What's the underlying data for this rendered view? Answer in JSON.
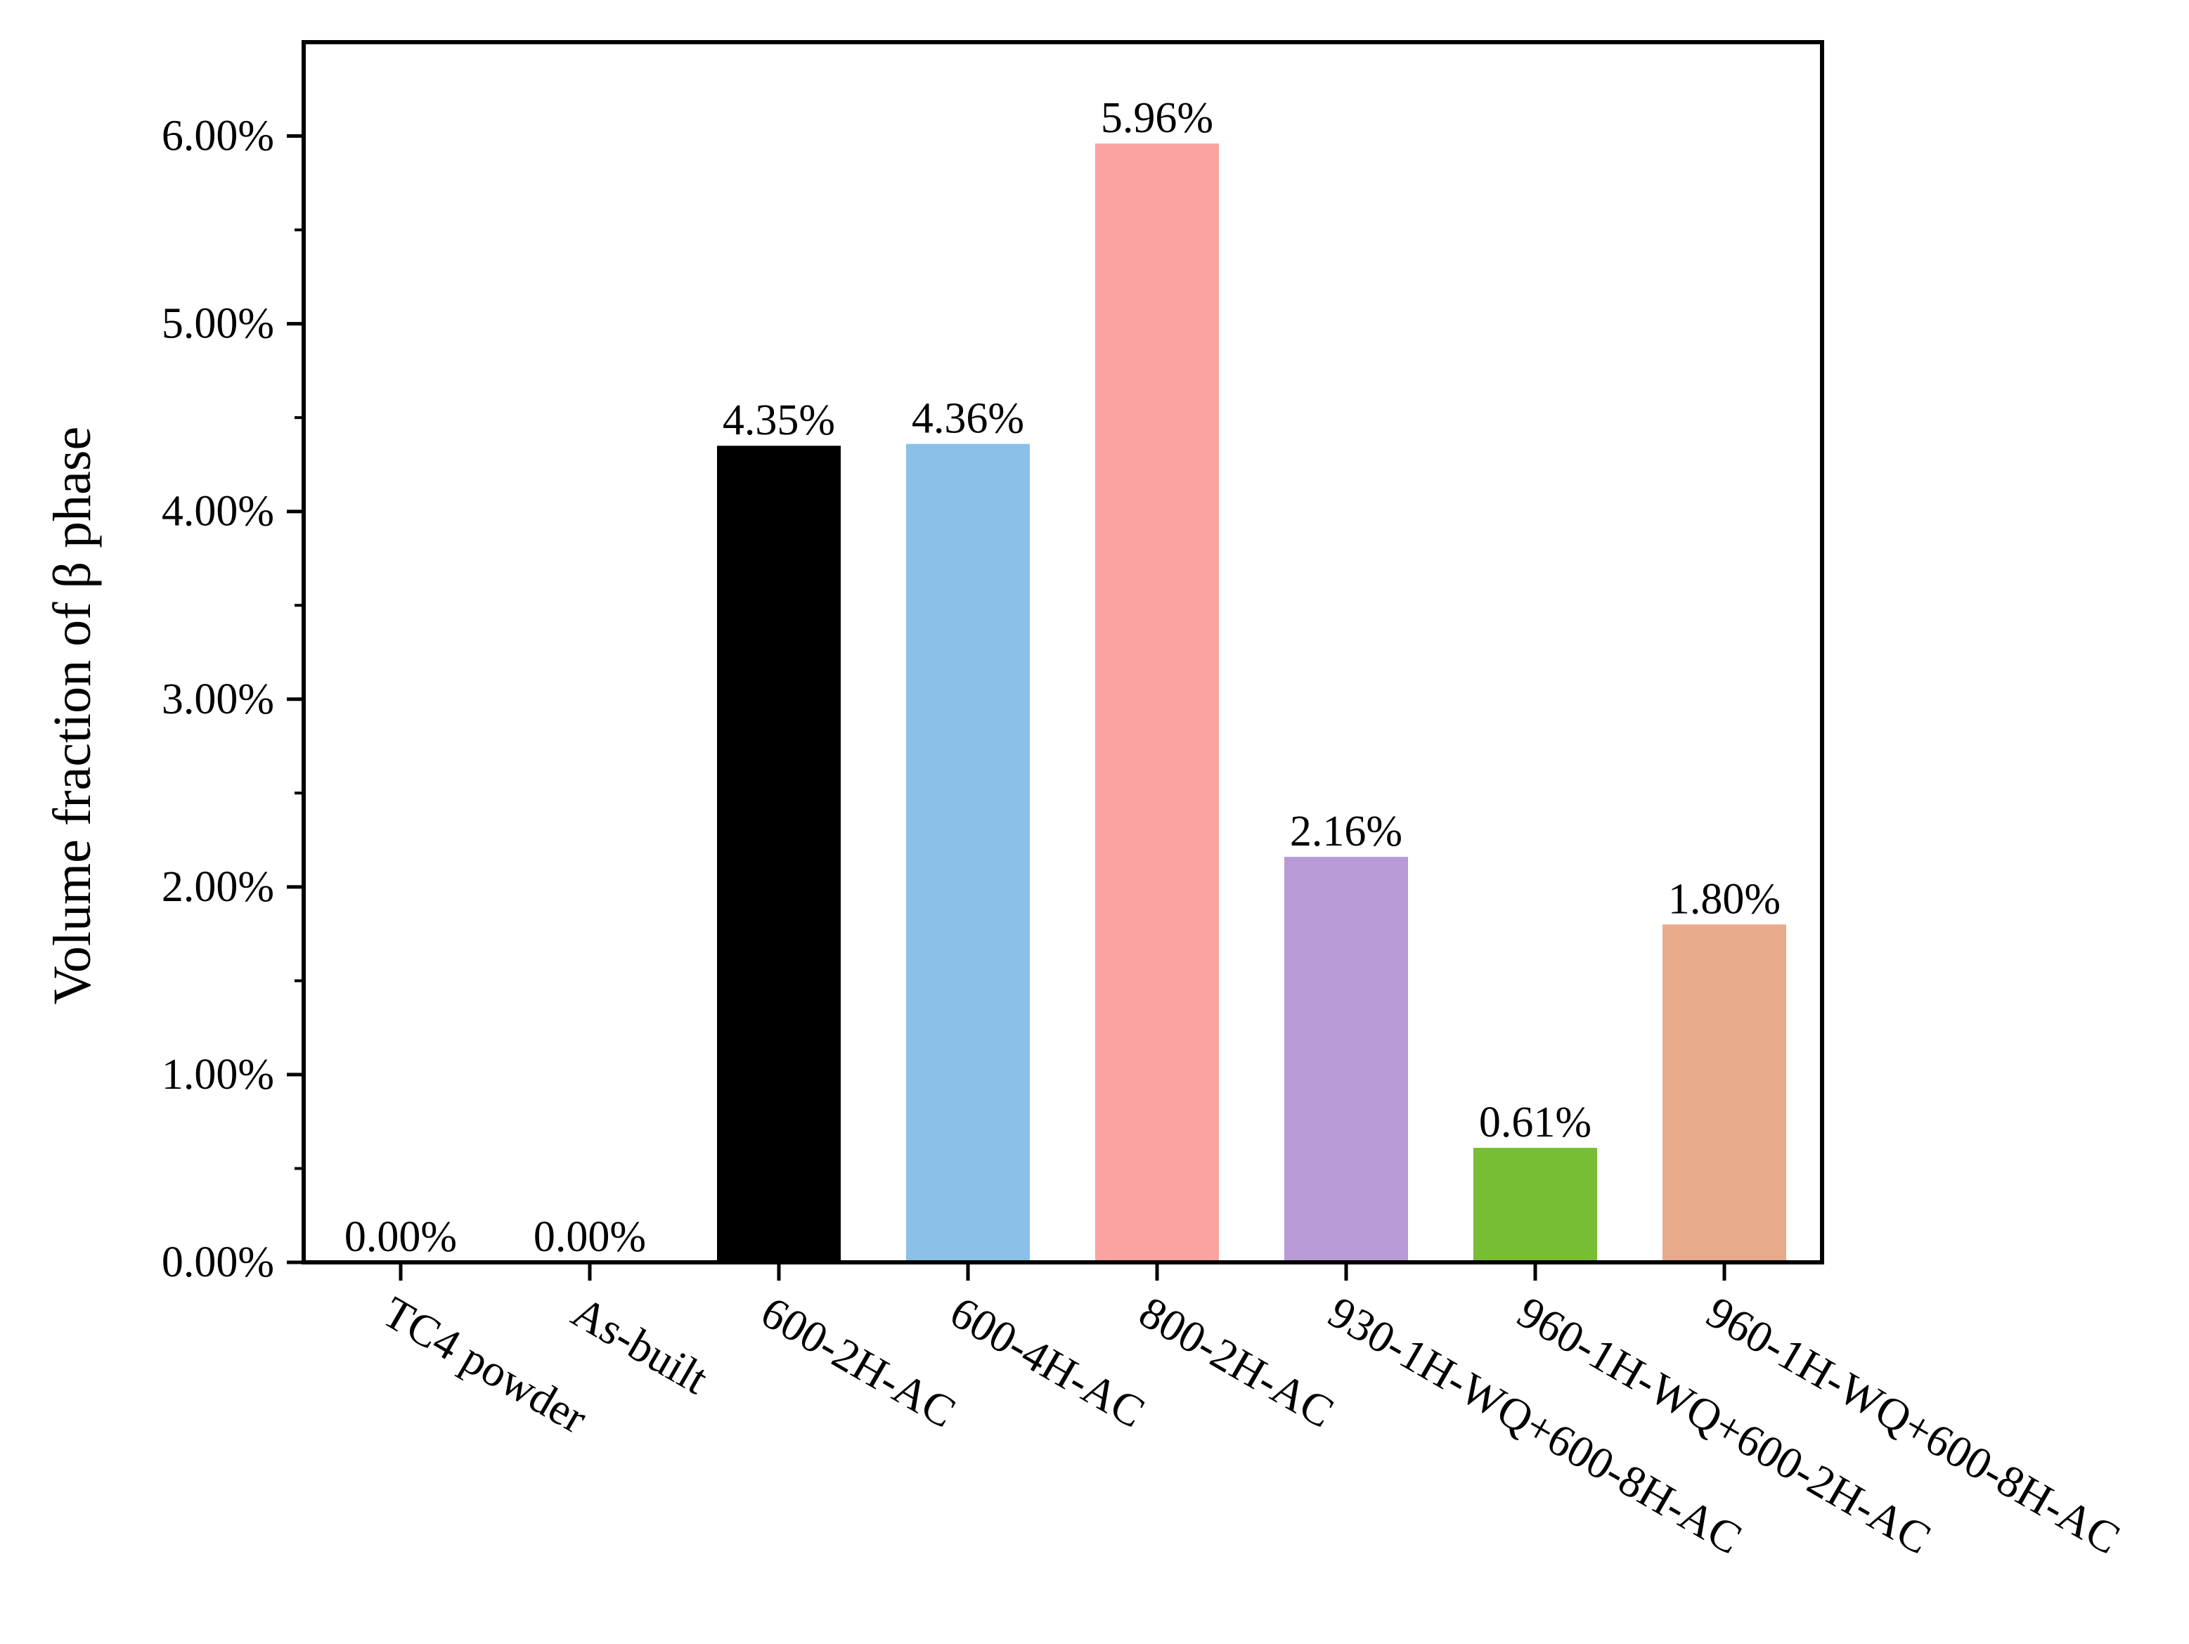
{
  "chart_data": {
    "type": "bar",
    "title": "",
    "xlabel": "",
    "ylabel": "Volume fraction of β phase",
    "categories": [
      "TC4 powder",
      "As-built",
      "600-2H-AC",
      "600-4H-AC",
      "800-2H-AC",
      "930-1H-WQ+600-8H-AC",
      "960-1H-WQ+600-2H-AC",
      "960-1H-WQ+600-8H-AC"
    ],
    "values": [
      0.0,
      0.0,
      4.35,
      4.36,
      5.96,
      2.16,
      0.61,
      1.8
    ],
    "value_labels": [
      "0.00%",
      "0.00%",
      "4.35%",
      "4.36%",
      "5.96%",
      "2.16%",
      "0.61%",
      "1.80%"
    ],
    "colors": [
      "#000000",
      "#000000",
      "#000000",
      "#8bc1e9",
      "#fba3a1",
      "#b89ad6",
      "#77be35",
      "#e7ab8b"
    ],
    "ylim": [
      0,
      6.5
    ],
    "yticks": [
      0,
      1,
      2,
      3,
      4,
      5,
      6
    ],
    "ytick_labels": [
      "0.00%",
      "1.00%",
      "2.00%",
      "3.00%",
      "4.00%",
      "5.00%",
      "6.00%"
    ],
    "grid": false,
    "legend": "none"
  }
}
